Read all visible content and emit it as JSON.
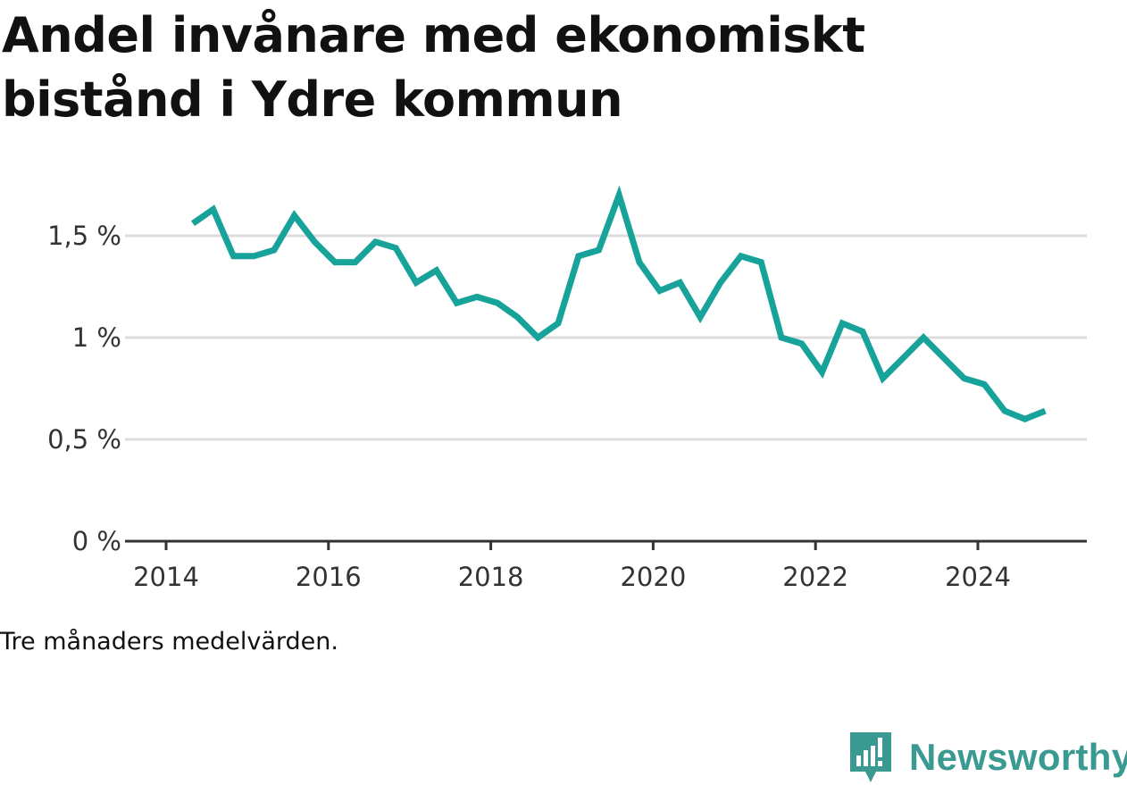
{
  "title": "Andel invånare med ekonomiskt bistånd i Ydre kommun",
  "caption": "Tre månaders medelvärden.",
  "brand": {
    "name": "Newsworthy",
    "icon": "newsworthy-logo-icon",
    "color": "#3a9a92"
  },
  "chart_data": {
    "type": "line",
    "title": "Andel invånare med ekonomiskt bistånd i Ydre kommun",
    "xlabel": "",
    "ylabel": "",
    "x_ticks": [
      "2014",
      "2016",
      "2018",
      "2020",
      "2022",
      "2024"
    ],
    "y_ticks": [
      0,
      0.5,
      1,
      1.5
    ],
    "y_tick_labels": [
      "0 %",
      "0,5 %",
      "1 %",
      "1,5 %"
    ],
    "xlim": [
      2014,
      2025.35
    ],
    "ylim": [
      0,
      1.9
    ],
    "grid": "horizontal",
    "line_color": "#18a39a",
    "series": [
      {
        "x": [
          2014.33,
          2014.58,
          2014.83,
          2015.08,
          2015.33,
          2015.58,
          2015.83,
          2016.08,
          2016.33,
          2016.58,
          2016.83,
          2017.08,
          2017.33,
          2017.58,
          2017.83,
          2018.08,
          2018.33,
          2018.58,
          2018.83,
          2019.08,
          2019.33,
          2019.58,
          2019.83,
          2020.08,
          2020.33,
          2020.58,
          2020.83,
          2021.08,
          2021.33,
          2021.58,
          2021.83,
          2022.08,
          2022.33,
          2022.58,
          2022.83,
          2023.08,
          2023.33,
          2023.58,
          2023.83,
          2024.08,
          2024.33,
          2024.58,
          2024.83
        ],
        "values": [
          1.56,
          1.63,
          1.4,
          1.4,
          1.43,
          1.6,
          1.47,
          1.37,
          1.37,
          1.47,
          1.44,
          1.27,
          1.33,
          1.17,
          1.2,
          1.17,
          1.1,
          1.0,
          1.07,
          1.4,
          1.43,
          1.7,
          1.37,
          1.23,
          1.27,
          1.1,
          1.27,
          1.4,
          1.37,
          1.0,
          0.97,
          0.83,
          1.07,
          1.03,
          0.8,
          0.9,
          1.0,
          0.9,
          0.8,
          0.77,
          0.64,
          0.6,
          0.64
        ]
      }
    ]
  }
}
